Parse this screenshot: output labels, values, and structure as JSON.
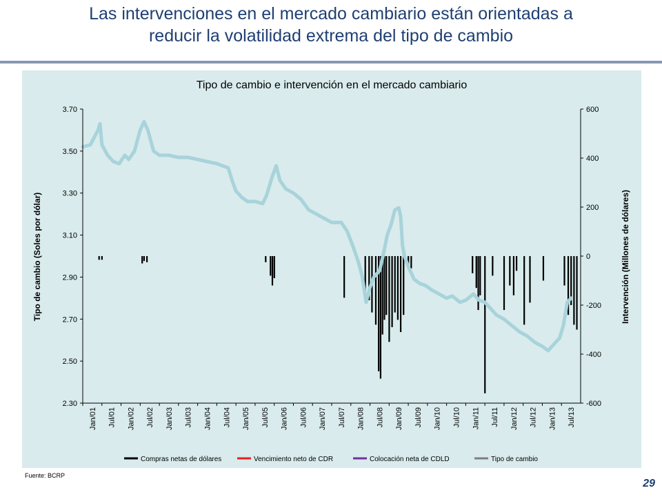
{
  "slide": {
    "title_line1": "Las intervenciones en el mercado cambiario están orientadas a",
    "title_line2": "reducir la volatilidad extrema del tipo de cambio",
    "source": "Fuente: BCRP",
    "page_number": "29"
  },
  "colors": {
    "title": "#1f3f73",
    "panel_bg": "#d9ebec",
    "exchange_rate": "#a8d3db",
    "purchases": "#000000",
    "cdr": "#ee1c1c",
    "cdbcrp": "#7030a0",
    "legend_exchange": "#7f7f7f"
  },
  "chart_data": {
    "type": "line+bar",
    "title": "Tipo de cambio e intervención en el mercado cambiario",
    "ylabel_left": "Tipo de cambio (Soles por dólar)",
    "ylabel_right": "Intervención (Millones de dólares)",
    "left_axis": {
      "min": 2.3,
      "max": 3.7,
      "ticks": [
        "3.70",
        "3.50",
        "3.30",
        "3.10",
        "2.90",
        "2.70",
        "2.50",
        "2.30"
      ]
    },
    "right_axis": {
      "min": -600,
      "max": 600,
      "ticks": [
        "600",
        "400",
        "200",
        "0",
        "-200",
        "-400",
        "-600"
      ]
    },
    "x_labels": [
      "Jan/01",
      "Jul/01",
      "Jan/02",
      "Jul/02",
      "Jan/03",
      "Jul/03",
      "Jan/04",
      "Jul/04",
      "Jan/05",
      "Jul/05",
      "Jan/06",
      "Jul/06",
      "Jan/07",
      "Jul/07",
      "Jan/08",
      "Jul/08",
      "Jan/09",
      "Jul/09",
      "Jan/10",
      "Jul/10",
      "Jan/11",
      "Jul/11",
      "Jan/12",
      "Jul/12",
      "Jan/13",
      "Jul/13"
    ],
    "legend": [
      {
        "label": "Compras netas de dólares",
        "color_key": "purchases"
      },
      {
        "label": "Vencimiento neto de CDR",
        "color_key": "cdr"
      },
      {
        "label": "Colocación neta de CDLD",
        "color_key": "cdbcrp"
      },
      {
        "label": "Tipo de cambio",
        "color_key": "legend_exchange"
      }
    ],
    "exchange_rate_series": {
      "name": "Tipo de cambio",
      "points": [
        [
          0,
          3.52
        ],
        [
          0.4,
          3.53
        ],
        [
          0.8,
          3.6
        ],
        [
          0.9,
          3.63
        ],
        [
          1.0,
          3.53
        ],
        [
          1.3,
          3.48
        ],
        [
          1.6,
          3.45
        ],
        [
          1.9,
          3.44
        ],
        [
          2.2,
          3.48
        ],
        [
          2.4,
          3.46
        ],
        [
          2.7,
          3.5
        ],
        [
          3.0,
          3.6
        ],
        [
          3.2,
          3.64
        ],
        [
          3.4,
          3.6
        ],
        [
          3.7,
          3.5
        ],
        [
          4.0,
          3.48
        ],
        [
          4.5,
          3.48
        ],
        [
          5.0,
          3.47
        ],
        [
          5.5,
          3.47
        ],
        [
          6.0,
          3.46
        ],
        [
          6.5,
          3.45
        ],
        [
          7.0,
          3.44
        ],
        [
          7.3,
          3.43
        ],
        [
          7.6,
          3.42
        ],
        [
          7.8,
          3.36
        ],
        [
          8.0,
          3.31
        ],
        [
          8.3,
          3.28
        ],
        [
          8.6,
          3.26
        ],
        [
          9.0,
          3.26
        ],
        [
          9.4,
          3.25
        ],
        [
          9.6,
          3.29
        ],
        [
          9.9,
          3.38
        ],
        [
          10.1,
          3.43
        ],
        [
          10.3,
          3.36
        ],
        [
          10.6,
          3.32
        ],
        [
          11.0,
          3.3
        ],
        [
          11.4,
          3.27
        ],
        [
          11.8,
          3.22
        ],
        [
          12.2,
          3.2
        ],
        [
          12.6,
          3.18
        ],
        [
          13.0,
          3.16
        ],
        [
          13.5,
          3.16
        ],
        [
          13.8,
          3.12
        ],
        [
          14.1,
          3.05
        ],
        [
          14.4,
          2.97
        ],
        [
          14.6,
          2.9
        ],
        [
          14.8,
          2.78
        ],
        [
          15.0,
          2.85
        ],
        [
          15.2,
          2.9
        ],
        [
          15.5,
          2.93
        ],
        [
          15.7,
          3.01
        ],
        [
          15.9,
          3.1
        ],
        [
          16.1,
          3.15
        ],
        [
          16.3,
          3.22
        ],
        [
          16.5,
          3.23
        ],
        [
          16.6,
          3.19
        ],
        [
          16.7,
          3.05
        ],
        [
          16.8,
          3.0
        ],
        [
          17.0,
          2.95
        ],
        [
          17.3,
          2.89
        ],
        [
          17.6,
          2.87
        ],
        [
          17.9,
          2.86
        ],
        [
          18.2,
          2.84
        ],
        [
          18.6,
          2.82
        ],
        [
          19.0,
          2.8
        ],
        [
          19.3,
          2.81
        ],
        [
          19.7,
          2.78
        ],
        [
          20.0,
          2.79
        ],
        [
          20.4,
          2.82
        ],
        [
          20.7,
          2.79
        ],
        [
          21.0,
          2.78
        ],
        [
          21.3,
          2.75
        ],
        [
          21.6,
          2.72
        ],
        [
          22.0,
          2.7
        ],
        [
          22.4,
          2.67
        ],
        [
          22.8,
          2.64
        ],
        [
          23.2,
          2.62
        ],
        [
          23.6,
          2.59
        ],
        [
          24.0,
          2.57
        ],
        [
          24.3,
          2.55
        ],
        [
          24.6,
          2.58
        ],
        [
          24.9,
          2.61
        ],
        [
          25.1,
          2.67
        ],
        [
          25.3,
          2.78
        ],
        [
          25.5,
          2.8
        ]
      ]
    },
    "purchases_bars": {
      "name": "Compras netas de dólares",
      "bars": [
        [
          0.85,
          -15
        ],
        [
          1.0,
          -15
        ],
        [
          3.1,
          -30
        ],
        [
          3.2,
          -20
        ],
        [
          3.35,
          -25
        ],
        [
          9.55,
          -25
        ],
        [
          9.8,
          -80
        ],
        [
          9.9,
          -120
        ],
        [
          10.0,
          -90
        ],
        [
          13.65,
          -170
        ],
        [
          14.75,
          -150
        ],
        [
          14.95,
          -180
        ],
        [
          15.1,
          -230
        ],
        [
          15.3,
          -280
        ],
        [
          15.45,
          -470
        ],
        [
          15.55,
          -500
        ],
        [
          15.65,
          -320
        ],
        [
          15.75,
          -260
        ],
        [
          15.85,
          -240
        ],
        [
          16.0,
          -350
        ],
        [
          16.15,
          -290
        ],
        [
          16.3,
          -230
        ],
        [
          16.45,
          -260
        ],
        [
          16.6,
          -310
        ],
        [
          16.75,
          -240
        ],
        [
          17.0,
          -40
        ],
        [
          17.15,
          -50
        ],
        [
          20.35,
          -70
        ],
        [
          20.55,
          -130
        ],
        [
          20.65,
          -220
        ],
        [
          20.75,
          -160
        ],
        [
          21.0,
          -560
        ],
        [
          21.4,
          -80
        ],
        [
          22.0,
          -220
        ],
        [
          22.3,
          -120
        ],
        [
          22.5,
          -160
        ],
        [
          22.65,
          -60
        ],
        [
          23.05,
          -280
        ],
        [
          23.35,
          -190
        ],
        [
          24.05,
          -100
        ],
        [
          25.15,
          -120
        ],
        [
          25.35,
          -240
        ],
        [
          25.5,
          -200
        ],
        [
          25.65,
          -280
        ],
        [
          25.8,
          -300
        ]
      ]
    }
  }
}
